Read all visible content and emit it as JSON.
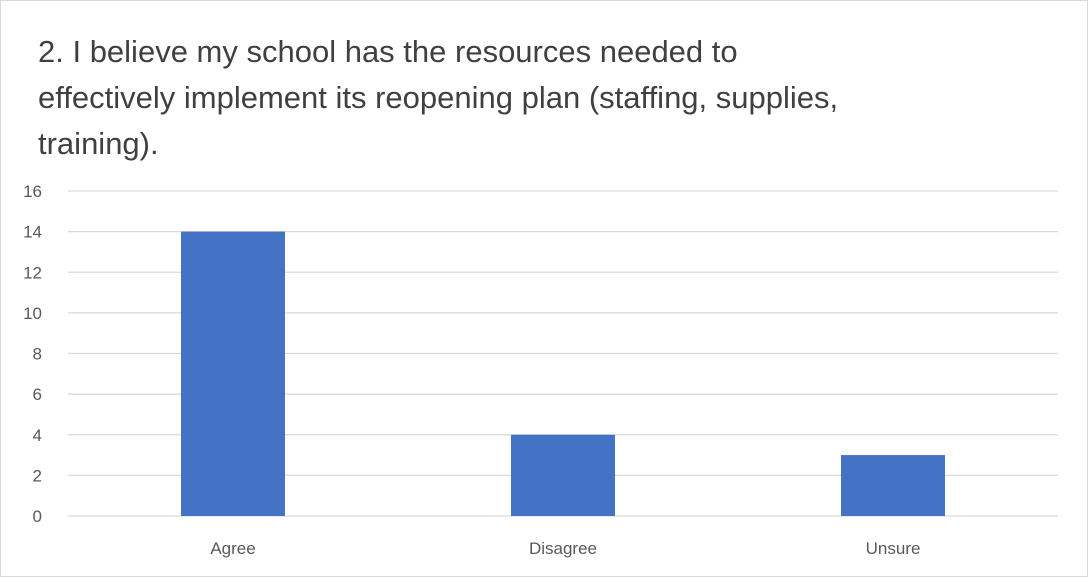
{
  "chart_data": {
    "type": "bar",
    "title": "2.  I believe my school has the resources needed to effectively implement its reopening plan (staffing, supplies, training).",
    "categories": [
      "Agree",
      "Disagree",
      "Unsure"
    ],
    "values": [
      14,
      4,
      3
    ],
    "y_ticks": [
      "0",
      "2",
      "4",
      "6",
      "8",
      "10",
      "12",
      "14",
      "16"
    ],
    "ylim": [
      0,
      16
    ],
    "xlabel": "",
    "ylabel": "",
    "grid": true,
    "legend": "none",
    "colors": {
      "bar": "#4472C4",
      "gridline": "#D9D9D9",
      "text": "#595959",
      "title": "#404040"
    }
  }
}
